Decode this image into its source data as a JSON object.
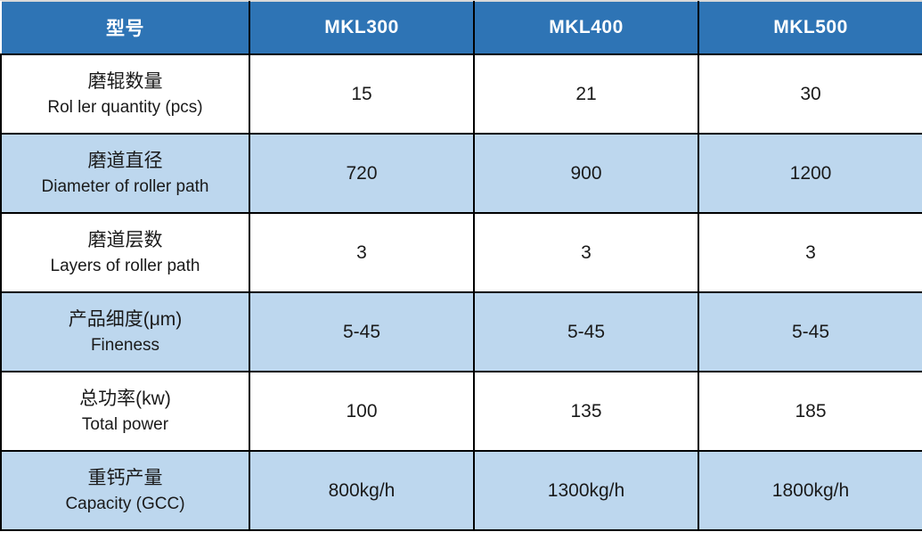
{
  "table": {
    "header": {
      "model_label": "型号",
      "models": [
        "MKL300",
        "MKL400",
        "MKL500"
      ]
    },
    "rows": [
      {
        "label_zh": "磨辊数量",
        "label_en": "Rol ler quantity (pcs)",
        "values": [
          "15",
          "21",
          "30"
        ]
      },
      {
        "label_zh": "磨道直径",
        "label_en": "Diameter of roller path",
        "values": [
          "720",
          "900",
          "1200"
        ]
      },
      {
        "label_zh": "磨道层数",
        "label_en": "Layers of roller path",
        "values": [
          "3",
          "3",
          "3"
        ]
      },
      {
        "label_zh": "产品细度(μm)",
        "label_en": "Fineness",
        "values": [
          "5-45",
          "5-45",
          "5-45"
        ]
      },
      {
        "label_zh": "总功率(kw)",
        "label_en": "Total power",
        "values": [
          "100",
          "135",
          "185"
        ]
      },
      {
        "label_zh": "重钙产量",
        "label_en": "Capacity (GCC)",
        "values": [
          "800kg/h",
          "1300kg/h",
          "1800kg/h"
        ]
      }
    ],
    "colors": {
      "header_bg": "#2e74b5",
      "header_text": "#ffffff",
      "shaded_row_bg": "#bdd7ee",
      "plain_row_bg": "#ffffff",
      "border": "#000000",
      "text": "#1a1a1a"
    }
  }
}
